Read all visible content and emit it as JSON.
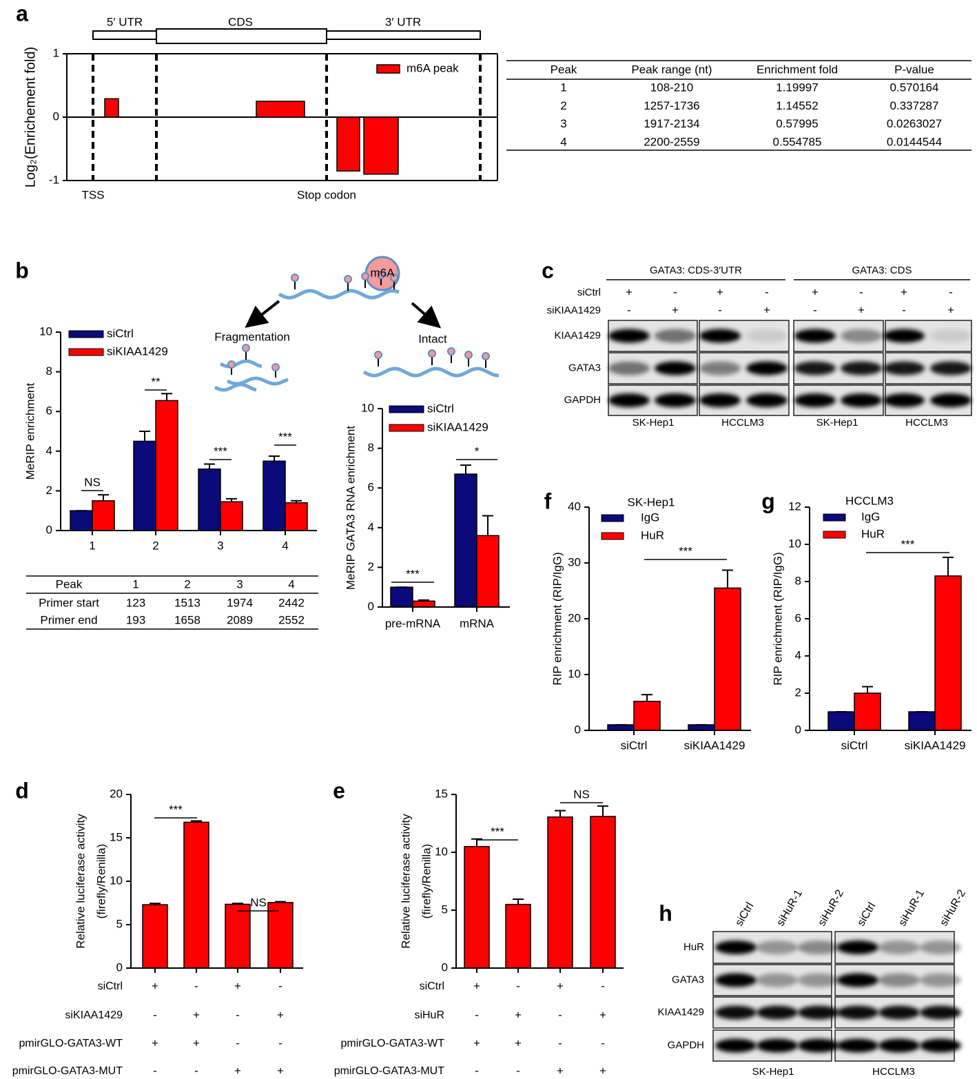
{
  "chart_data": [
    {
      "type": "bar",
      "ylabel": "Log₂(Enrichement fold)",
      "ylim": [
        -1,
        1
      ],
      "yticks": [
        -1,
        0,
        1
      ],
      "series": [
        {
          "name": "m6A peak",
          "color": "#ff0000",
          "values": [
            0.29,
            0.25,
            -0.85,
            -0.9
          ]
        }
      ],
      "annotations": [
        "5′ UTR",
        "CDS",
        "3′ UTR",
        "TSS",
        "Stop codon"
      ]
    },
    {
      "type": "bar",
      "ylabel": "MeRIP enrichment",
      "categories": [
        "1",
        "2",
        "3",
        "4"
      ],
      "ylim": [
        0,
        10
      ],
      "yticks": [
        0,
        2,
        4,
        6,
        8,
        10
      ],
      "series": [
        {
          "name": "siCtrl",
          "color": "#0a0a7a",
          "values": [
            1,
            4.5,
            3.1,
            3.5
          ],
          "errors": [
            0,
            0.5,
            0.25,
            0.25
          ]
        },
        {
          "name": "siKIAA1429",
          "color": "#ff0000",
          "values": [
            1.5,
            6.55,
            1.45,
            1.4
          ],
          "errors": [
            0.3,
            0.35,
            0.15,
            0.1
          ]
        }
      ],
      "significance": [
        "NS",
        "**",
        "***",
        "***"
      ]
    },
    {
      "type": "bar",
      "ylabel": "MeRIP GATA3 RNA enrichment",
      "categories": [
        "pre-mRNA",
        "mRNA"
      ],
      "ylim": [
        0,
        10
      ],
      "yticks": [
        0,
        2,
        4,
        6,
        8,
        10
      ],
      "series": [
        {
          "name": "siCtrl",
          "color": "#0a0a7a",
          "values": [
            1,
            6.7
          ],
          "errors": [
            0,
            0.45
          ]
        },
        {
          "name": "siKIAA1429",
          "color": "#ff0000",
          "values": [
            0.3,
            3.6
          ],
          "errors": [
            0.05,
            1.0
          ]
        }
      ],
      "significance": [
        "***",
        "*"
      ]
    },
    {
      "type": "bar",
      "title": "SK-Hep1",
      "ylabel": "RIP enrichment (RIP/IgG)",
      "categories": [
        "siCtrl",
        "siKIAA1429"
      ],
      "ylim": [
        0,
        40
      ],
      "yticks": [
        0,
        10,
        20,
        30,
        40
      ],
      "series": [
        {
          "name": "IgG",
          "color": "#0a0a7a",
          "values": [
            1,
            1
          ],
          "errors": [
            0,
            0
          ]
        },
        {
          "name": "HuR",
          "color": "#ff0000",
          "values": [
            5.2,
            25.5
          ],
          "errors": [
            1.2,
            3.2
          ]
        }
      ],
      "significance": [
        "***"
      ]
    },
    {
      "type": "bar",
      "title": "HCCLM3",
      "ylabel": "RIP enrichment (RIP/IgG)",
      "categories": [
        "siCtrl",
        "siKIAA1429"
      ],
      "ylim": [
        0,
        12
      ],
      "yticks": [
        0,
        2,
        4,
        6,
        8,
        10,
        12
      ],
      "series": [
        {
          "name": "IgG",
          "color": "#0a0a7a",
          "values": [
            1,
            1
          ],
          "errors": [
            0,
            0
          ]
        },
        {
          "name": "HuR",
          "color": "#ff0000",
          "values": [
            2,
            8.3
          ],
          "errors": [
            0.35,
            1.0
          ]
        }
      ],
      "significance": [
        "***"
      ]
    },
    {
      "type": "bar",
      "ylabel": [
        "Relative luciferase activity",
        "(firefly/Renilla)"
      ],
      "ylim": [
        0,
        20
      ],
      "yticks": [
        0,
        5,
        10,
        15,
        20
      ],
      "series": [
        {
          "color": "#ff0000",
          "values": [
            7.3,
            16.8,
            7.35,
            7.55
          ],
          "errors": [
            0.15,
            0.15,
            0.1,
            0.1
          ]
        }
      ],
      "significance": [
        "***",
        "NS"
      ],
      "conditions": [
        {
          "label": "siCtrl",
          "signs": [
            "+",
            "-",
            "+",
            "-"
          ]
        },
        {
          "label": "siKIAA1429",
          "signs": [
            "-",
            "+",
            "-",
            "+"
          ]
        },
        {
          "label": "pmirGLO-GATA3-WT",
          "signs": [
            "+",
            "+",
            "-",
            "-"
          ]
        },
        {
          "label": "pmirGLO-GATA3-MUT",
          "signs": [
            "-",
            "-",
            "+",
            "+"
          ]
        }
      ]
    },
    {
      "type": "bar",
      "ylabel": [
        "Relative luciferase activity",
        "(firefly/Renilla)"
      ],
      "ylim": [
        0,
        15
      ],
      "yticks": [
        0,
        5,
        10,
        15
      ],
      "series": [
        {
          "color": "#ff0000",
          "values": [
            10.5,
            5.5,
            13.05,
            13.1
          ],
          "errors": [
            0.65,
            0.45,
            0.55,
            0.9
          ]
        }
      ],
      "significance": [
        "***",
        "NS"
      ],
      "conditions": [
        {
          "label": "siCtrl",
          "signs": [
            "+",
            "-",
            "+",
            "-"
          ]
        },
        {
          "label": "siHuR",
          "signs": [
            "-",
            "+",
            "-",
            "+"
          ]
        },
        {
          "label": "pmirGLO-GATA3-WT",
          "signs": [
            "+",
            "+",
            "-",
            "-"
          ]
        },
        {
          "label": "pmirGLO-GATA3-MUT",
          "signs": [
            "-",
            "-",
            "+",
            "+"
          ]
        }
      ]
    }
  ],
  "panel_labels": [
    "a",
    "b",
    "c",
    "d",
    "e",
    "f",
    "g",
    "h"
  ],
  "table_a": {
    "header": [
      "Peak",
      "Peak range (nt)",
      "Enrichment fold",
      "P-value"
    ],
    "rows": [
      [
        "1",
        "108-210",
        "1.19997",
        "0.570164"
      ],
      [
        "2",
        "1257-1736",
        "1.14552",
        "0.337287"
      ],
      [
        "3",
        "1917-2134",
        "0.57995",
        "0.0263027"
      ],
      [
        "4",
        "2200-2559",
        "0.554785",
        "0.0144544"
      ]
    ]
  },
  "table_b": {
    "rows": [
      [
        "Peak",
        "1",
        "2",
        "3",
        "4"
      ],
      [
        "Primer start",
        "123",
        "1513",
        "1974",
        "2442"
      ],
      [
        "Primer end",
        "193",
        "1658",
        "2089",
        "2552"
      ]
    ]
  },
  "schematic_b": {
    "modification": "m6A",
    "left": "Fragmentation",
    "right": "Intact"
  },
  "blot_c": {
    "groups": [
      "GATA3: CDS-3′UTR",
      "GATA3: CDS"
    ],
    "conditions": [
      {
        "label": "siCtrl",
        "signs": [
          "+",
          "-",
          "+",
          "-",
          "+",
          "-",
          "+",
          "-"
        ]
      },
      {
        "label": "siKIAA1429",
        "signs": [
          "-",
          "+",
          "-",
          "+",
          "-",
          "+",
          "-",
          "+"
        ]
      }
    ],
    "rows": [
      "KIAA1429",
      "GATA3",
      "GAPDH"
    ],
    "cells": [
      "SK-Hep1",
      "HCCLM3",
      "SK-Hep1",
      "HCCLM3"
    ]
  },
  "blot_h": {
    "lanes": [
      "siCtrl",
      "siHuR-1",
      "siHuR-2",
      "siCtrl",
      "siHuR-1",
      "siHuR-2"
    ],
    "rows": [
      "HuR",
      "GATA3",
      "KIAA1429",
      "GAPDH"
    ],
    "cells": [
      "SK-Hep1",
      "HCCLM3"
    ]
  }
}
